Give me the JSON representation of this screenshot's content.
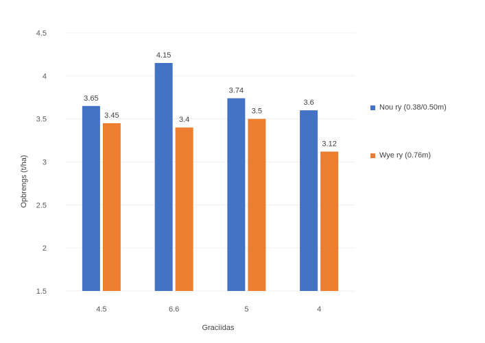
{
  "chart_data": {
    "type": "bar",
    "title": "",
    "xlabel": "Graciïdas",
    "ylabel": "Opbrengs (t/ha)",
    "categories": [
      "4.5",
      "6.6",
      "5",
      "4"
    ],
    "ylim": [
      1.5,
      4.5
    ],
    "yticks": [
      "1.5",
      "2",
      "2.5",
      "3",
      "3.5",
      "4",
      "4.5"
    ],
    "ytick_values": [
      1.5,
      2,
      2.5,
      3,
      3.5,
      4,
      4.5
    ],
    "grid": true,
    "legend_position": "right",
    "series": [
      {
        "name": "Nou ry (0.38/0.50m)",
        "color": "#4472C4",
        "values": [
          3.65,
          4.15,
          3.74,
          3.6
        ],
        "labels": [
          "3.65",
          "4.15",
          "3.74",
          "3.6"
        ]
      },
      {
        "name": "Wye ry (0.76m)",
        "color": "#ED7D31",
        "values": [
          3.45,
          3.4,
          3.5,
          3.12
        ],
        "labels": [
          "3.45",
          "3.4",
          "3.5",
          "3.12"
        ]
      }
    ]
  }
}
